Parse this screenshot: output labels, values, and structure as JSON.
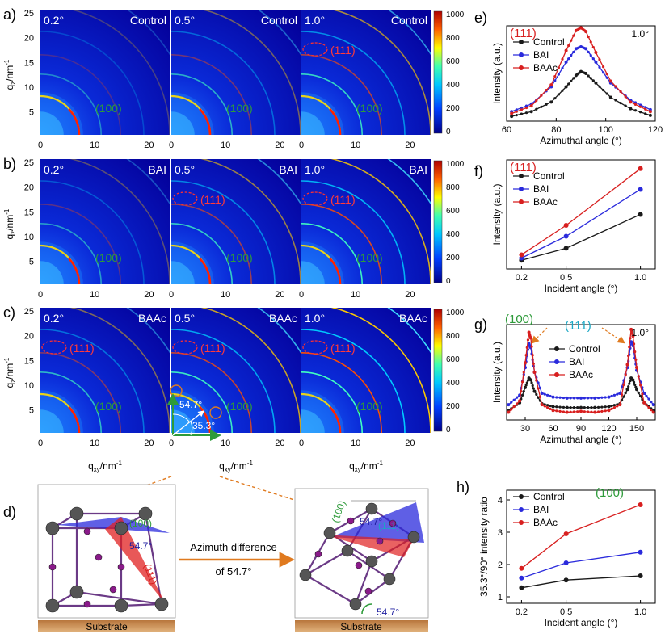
{
  "gi": {
    "row_labels": [
      "a)",
      "b)",
      "c)"
    ],
    "angles": [
      "0.2°",
      "0.5°",
      "1.0°"
    ],
    "samples": [
      "Control",
      "BAI",
      "BAAc"
    ],
    "ylabel_main": "q",
    "ylabel_sub": "z",
    "ylabel_unit": "/nm",
    "ylabel_exp": "-1",
    "xlabel_main": "q",
    "xlabel_sub": "xy",
    "xlabel_unit": "/nm",
    "xlabel_exp": "-1",
    "y_ticks": [
      "25",
      "20",
      "15",
      "10",
      "5"
    ],
    "x_ticks": [
      "0",
      "10",
      "20"
    ],
    "colorbar_ticks": [
      "1000",
      "800",
      "600",
      "400",
      "200",
      "0"
    ],
    "label_100": "(100)",
    "label_111": "(111)",
    "angle_54": "54.7°",
    "angle_35": "35.3°"
  },
  "chart_data": [
    {
      "panel": "e)",
      "type": "line",
      "title_label": "(111)",
      "note": "1.0°",
      "xlabel": "Azimuthal angle (°)",
      "ylabel": "Intensity (a.u.)",
      "xlim": [
        60,
        120
      ],
      "x_ticks": [
        "60",
        "80",
        "100",
        "120"
      ],
      "x": [
        62,
        70,
        78,
        84,
        88,
        90,
        92,
        96,
        102,
        110,
        118
      ],
      "series": [
        {
          "name": "Control",
          "color": "#1a1a1a",
          "values": [
            0.05,
            0.1,
            0.2,
            0.36,
            0.48,
            0.52,
            0.5,
            0.4,
            0.25,
            0.13,
            0.06
          ]
        },
        {
          "name": "BAI",
          "color": "#2a2adc",
          "values": [
            0.1,
            0.18,
            0.36,
            0.62,
            0.76,
            0.78,
            0.76,
            0.62,
            0.4,
            0.22,
            0.12
          ]
        },
        {
          "name": "BAAc",
          "color": "#d81f1f",
          "values": [
            0.08,
            0.16,
            0.38,
            0.74,
            0.95,
            0.98,
            0.94,
            0.72,
            0.42,
            0.2,
            0.1
          ]
        }
      ]
    },
    {
      "panel": "f)",
      "type": "line",
      "title_label": "(111)",
      "xlabel": "Incident angle (°)",
      "ylabel": "Intensity (a.u.)",
      "x": [
        0.2,
        0.5,
        1.0
      ],
      "x_ticks": [
        "0.2",
        "0.5",
        "1.0"
      ],
      "series": [
        {
          "name": "Control",
          "color": "#1a1a1a",
          "values": [
            0.08,
            0.19,
            0.5
          ]
        },
        {
          "name": "BAI",
          "color": "#2a2adc",
          "values": [
            0.1,
            0.3,
            0.73
          ]
        },
        {
          "name": "BAAc",
          "color": "#d81f1f",
          "values": [
            0.13,
            0.4,
            0.92
          ]
        }
      ]
    },
    {
      "panel": "g)",
      "type": "line",
      "label_100": "(100)",
      "label_111": "(111)",
      "note": "1.0°",
      "xlabel": "Azimuthal angle (°)",
      "ylabel": "Intensity (a.u.)",
      "xlim": [
        10,
        170
      ],
      "x_ticks": [
        "30",
        "60",
        "90",
        "120",
        "150"
      ],
      "x": [
        12,
        24,
        30,
        34,
        36,
        40,
        48,
        60,
        75,
        90,
        105,
        120,
        132,
        140,
        144,
        146,
        150,
        158,
        168
      ],
      "series": [
        {
          "name": "Control",
          "color": "#1a1a1a",
          "values": [
            0.1,
            0.18,
            0.34,
            0.44,
            0.42,
            0.3,
            0.17,
            0.14,
            0.13,
            0.13,
            0.13,
            0.14,
            0.17,
            0.32,
            0.44,
            0.42,
            0.32,
            0.18,
            0.1
          ]
        },
        {
          "name": "BAI",
          "color": "#2a2adc",
          "values": [
            0.16,
            0.26,
            0.55,
            0.8,
            0.76,
            0.5,
            0.28,
            0.24,
            0.23,
            0.23,
            0.23,
            0.24,
            0.28,
            0.55,
            0.82,
            0.78,
            0.52,
            0.28,
            0.16
          ]
        },
        {
          "name": "BAAc",
          "color": "#d81f1f",
          "values": [
            0.08,
            0.2,
            0.6,
            0.92,
            0.86,
            0.5,
            0.16,
            0.1,
            0.08,
            0.09,
            0.08,
            0.1,
            0.16,
            0.58,
            0.95,
            0.88,
            0.55,
            0.18,
            0.08
          ]
        }
      ]
    },
    {
      "panel": "h)",
      "type": "line",
      "title_label": "(100)",
      "xlabel": "Incident angle (°)",
      "ylabel": "35.3°/90° intensity ratio",
      "x": [
        0.2,
        0.5,
        1.0
      ],
      "x_ticks": [
        "0.2",
        "0.5",
        "1.0"
      ],
      "ylim": [
        1,
        4
      ],
      "y_ticks": [
        "1",
        "2",
        "3",
        "4"
      ],
      "series": [
        {
          "name": "Control",
          "color": "#1a1a1a",
          "values": [
            1.28,
            1.52,
            1.65
          ]
        },
        {
          "name": "BAI",
          "color": "#2a2adc",
          "values": [
            1.58,
            2.05,
            2.38
          ]
        },
        {
          "name": "BAAc",
          "color": "#d81f1f",
          "values": [
            1.88,
            2.95,
            3.85
          ]
        }
      ]
    }
  ],
  "schematic": {
    "panel_label": "d)",
    "label_100": "(100)",
    "label_111": "(111)",
    "angle": "54.7°",
    "arrow_text_1": "Azimuth difference",
    "arrow_text_2": "of 54.7°",
    "substrate": "Substrate"
  },
  "colors": {
    "red": "#d81f1f",
    "blue": "#2a2adc",
    "black": "#1a1a1a",
    "green": "#2e9b3a",
    "cyan": "#1aa7c4",
    "orange": "#e07a1f",
    "navy": "#1f1fa0"
  }
}
